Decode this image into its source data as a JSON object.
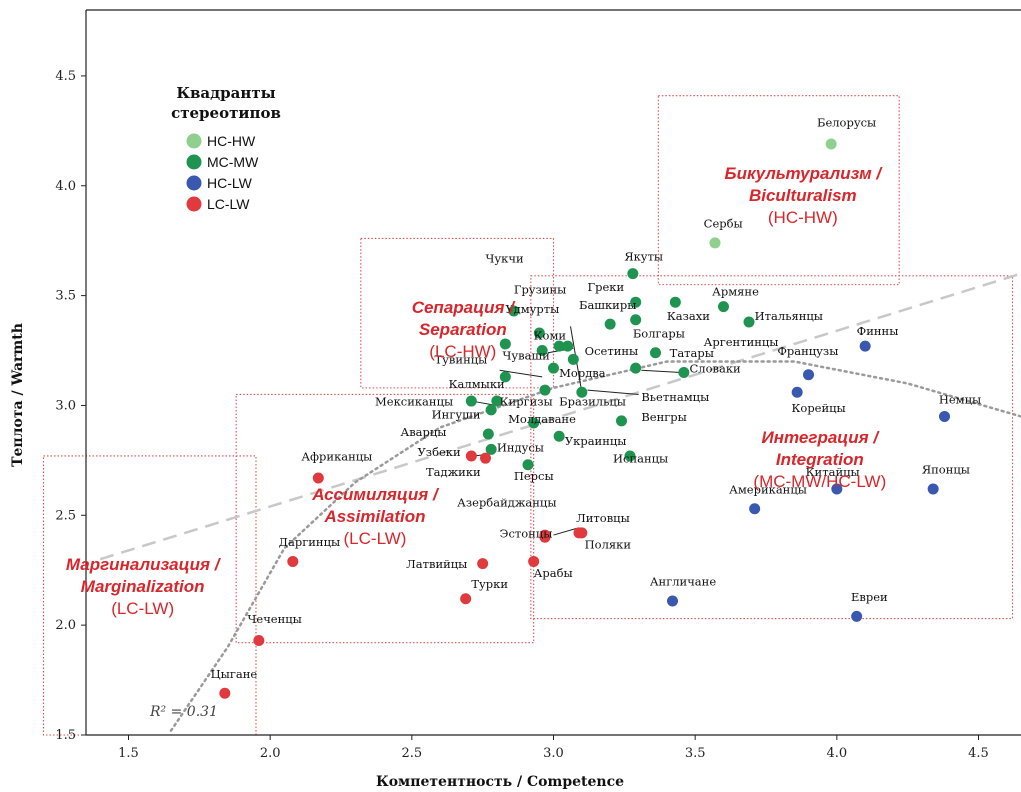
{
  "chart_data": {
    "type": "scatter",
    "xlabel": "Компетентность / Competence",
    "ylabel": "Теплота / Warmth",
    "xlim": [
      1.35,
      4.65
    ],
    "ylim": [
      1.5,
      4.8
    ],
    "x_ticks": [
      "1.5",
      "2.0",
      "2.5",
      "3.0",
      "3.5",
      "4.0",
      "4.5"
    ],
    "y_ticks": [
      "1.5",
      "2.0",
      "2.5",
      "3.0",
      "3.5",
      "4.0",
      "4.5"
    ],
    "legend": {
      "title_line1": "Квадранты",
      "title_line2": "стереотипов",
      "position": "top-left",
      "entries": [
        {
          "key": "HC-HW",
          "label": "HC-HW",
          "color": "#8fd08f"
        },
        {
          "key": "MC-MW",
          "label": "MC-MW",
          "color": "#1e9450"
        },
        {
          "key": "HC-LW",
          "label": "HC-LW",
          "color": "#3a58b0"
        },
        {
          "key": "LC-LW",
          "label": "LC-LW",
          "color": "#e0393e"
        }
      ]
    },
    "fit_line": {
      "style": "dashed",
      "r2_label": "R² = 0.31",
      "from": [
        1.4,
        2.3
      ],
      "to": [
        4.65,
        3.6
      ]
    },
    "curve_line": {
      "style": "dotted",
      "points": [
        [
          1.65,
          1.52
        ],
        [
          1.85,
          1.9
        ],
        [
          2.05,
          2.35
        ],
        [
          2.3,
          2.65
        ],
        [
          2.6,
          2.9
        ],
        [
          3.0,
          3.08
        ],
        [
          3.4,
          3.2
        ],
        [
          3.85,
          3.2
        ],
        [
          4.25,
          3.1
        ],
        [
          4.65,
          2.95
        ]
      ]
    },
    "regions": [
      {
        "name": "marginalization",
        "x": [
          1.2,
          1.95
        ],
        "y": [
          1.5,
          2.77
        ],
        "line1": "Маргинализация /",
        "line2": "Marginalization",
        "line3": "(LC-LW)",
        "lx": 1.55,
        "ly": 2.25
      },
      {
        "name": "assimilation",
        "x": [
          1.88,
          2.93
        ],
        "y": [
          1.92,
          3.05
        ],
        "line1": "Ассимиляция /",
        "line2": "Assimilation",
        "line3": "(LC-LW)",
        "lx": 2.37,
        "ly": 2.57
      },
      {
        "name": "separation",
        "x": [
          2.32,
          3.0
        ],
        "y": [
          3.08,
          3.76
        ],
        "line1": "Сепарация /",
        "line2": "Separation",
        "line3": "(LC-HW)",
        "lx": 2.68,
        "ly": 3.42
      },
      {
        "name": "integration",
        "x": [
          2.92,
          4.62
        ],
        "y": [
          2.03,
          3.59
        ],
        "line1": "Интеграция /",
        "line2": "Integration",
        "line3": "(MC-MW/HC-LW)",
        "lx": 3.94,
        "ly": 2.83
      },
      {
        "name": "biculturalism",
        "x": [
          3.37,
          4.22
        ],
        "y": [
          3.55,
          4.41
        ],
        "line1": "Бикультурализм /",
        "line2": "Biculturalism",
        "line3": "(HC-HW)",
        "lx": 3.88,
        "ly": 4.03
      }
    ],
    "points": [
      {
        "label": "Белорусы",
        "x": 3.98,
        "y": 4.19,
        "q": "HC-HW",
        "lx": 3.93,
        "ly": 4.27
      },
      {
        "label": "Сербы",
        "x": 3.57,
        "y": 3.74,
        "q": "HC-HW",
        "lx": 3.53,
        "ly": 3.81
      },
      {
        "label": "Якуты",
        "x": 3.28,
        "y": 3.6,
        "q": "MC-MW",
        "lx": 3.25,
        "ly": 3.66
      },
      {
        "label": "Чукчи",
        "x": 2.86,
        "y": 3.43,
        "q": "MC-MW",
        "lx": 2.76,
        "ly": 3.65
      },
      {
        "label": "Грузины",
        "x": 2.95,
        "y": 3.33,
        "q": "MC-MW",
        "lx": 2.86,
        "ly": 3.51
      },
      {
        "label": "Удмурты",
        "x": 3.05,
        "y": 3.27,
        "q": "MC-MW",
        "lx": 2.83,
        "ly": 3.42
      },
      {
        "label": "Греки",
        "x": 3.29,
        "y": 3.47,
        "q": "MC-MW",
        "lx": 3.12,
        "ly": 3.52
      },
      {
        "label": "Башкиры",
        "x": 3.2,
        "y": 3.37,
        "q": "MC-MW",
        "lx": 3.09,
        "ly": 3.44
      },
      {
        "label": "Армяне",
        "x": 3.6,
        "y": 3.45,
        "q": "MC-MW",
        "lx": 3.56,
        "ly": 3.5
      },
      {
        "label": "Казахи",
        "x": 3.43,
        "y": 3.47,
        "q": "MC-MW",
        "lx": 3.4,
        "ly": 3.39
      },
      {
        "label": "Итальянцы",
        "x": 3.69,
        "y": 3.38,
        "q": "MC-MW",
        "lx": 3.71,
        "ly": 3.39
      },
      {
        "label": "Коми",
        "x": 3.02,
        "y": 3.27,
        "q": "MC-MW",
        "lx": 2.93,
        "ly": 3.3
      },
      {
        "label": "Болгары",
        "x": 3.29,
        "y": 3.39,
        "q": "MC-MW",
        "lx": 3.28,
        "ly": 3.31
      },
      {
        "label": "Аргентинцы",
        "x": 3.36,
        "y": 3.24,
        "q": "MC-MW",
        "lx": 3.53,
        "ly": 3.27
      },
      {
        "label": "Тувинцы",
        "x": 2.83,
        "y": 3.28,
        "q": "MC-MW",
        "lx": 2.58,
        "ly": 3.19
      },
      {
        "label": "Чуваши",
        "x": 2.96,
        "y": 3.25,
        "q": "MC-MW",
        "lx": 2.82,
        "ly": 3.21
      },
      {
        "label": "Осетины",
        "x": 3.07,
        "y": 3.21,
        "q": "MC-MW",
        "lx": 3.11,
        "ly": 3.23
      },
      {
        "label": "Татары",
        "x": 3.29,
        "y": 3.17,
        "q": "MC-MW",
        "lx": 3.41,
        "ly": 3.22
      },
      {
        "label": "Калмыки",
        "x": 2.83,
        "y": 3.13,
        "q": "MC-MW",
        "lx": 2.63,
        "ly": 3.08
      },
      {
        "label": "Мордва",
        "x": 3.0,
        "y": 3.17,
        "q": "MC-MW",
        "lx": 3.02,
        "ly": 3.13
      },
      {
        "label": "Словаки",
        "x": 3.46,
        "y": 3.15,
        "q": "MC-MW",
        "lx": 3.48,
        "ly": 3.15
      },
      {
        "label": "Мексиканцы",
        "x": 2.71,
        "y": 3.02,
        "q": "MC-MW",
        "lx": 2.37,
        "ly": 3.0
      },
      {
        "label": "Киргизы",
        "x": 2.8,
        "y": 3.02,
        "q": "MC-MW",
        "lx": 2.81,
        "ly": 3.0
      },
      {
        "label": "Бразильцы",
        "x": 2.97,
        "y": 3.07,
        "q": "MC-MW",
        "lx": 3.02,
        "ly": 3.0
      },
      {
        "label": "Вьетнамцы",
        "x": 3.1,
        "y": 3.06,
        "q": "MC-MW",
        "lx": 3.31,
        "ly": 3.02
      },
      {
        "label": "Ингуши",
        "x": 2.78,
        "y": 2.98,
        "q": "MC-MW",
        "lx": 2.57,
        "ly": 2.94
      },
      {
        "label": "Молдаване",
        "x": 2.93,
        "y": 2.92,
        "q": "MC-MW",
        "lx": 2.84,
        "ly": 2.92
      },
      {
        "label": "Венгры",
        "x": 3.24,
        "y": 2.93,
        "q": "MC-MW",
        "lx": 3.31,
        "ly": 2.93
      },
      {
        "label": "Аварцы",
        "x": 2.77,
        "y": 2.87,
        "q": "MC-MW",
        "lx": 2.46,
        "ly": 2.86
      },
      {
        "label": "Украинцы",
        "x": 3.02,
        "y": 2.86,
        "q": "MC-MW",
        "lx": 3.04,
        "ly": 2.82
      },
      {
        "label": "Индусы",
        "x": 2.78,
        "y": 2.8,
        "q": "MC-MW",
        "lx": 2.8,
        "ly": 2.79
      },
      {
        "label": "Испанцы",
        "x": 3.27,
        "y": 2.77,
        "q": "MC-MW",
        "lx": 3.21,
        "ly": 2.74
      },
      {
        "label": "Персы",
        "x": 2.91,
        "y": 2.73,
        "q": "MC-MW",
        "lx": 2.86,
        "ly": 2.66
      },
      {
        "label": "Финны",
        "x": 4.1,
        "y": 3.27,
        "q": "HC-LW",
        "lx": 4.07,
        "ly": 3.32
      },
      {
        "label": "Французы",
        "x": 3.9,
        "y": 3.14,
        "q": "HC-LW",
        "lx": 3.79,
        "ly": 3.23
      },
      {
        "label": "Корейцы",
        "x": 3.86,
        "y": 3.06,
        "q": "HC-LW",
        "lx": 3.84,
        "ly": 2.97
      },
      {
        "label": "Немцы",
        "x": 4.38,
        "y": 2.95,
        "q": "HC-LW",
        "lx": 4.36,
        "ly": 3.01
      },
      {
        "label": "Китайцы",
        "x": 4.0,
        "y": 2.62,
        "q": "HC-LW",
        "lx": 3.89,
        "ly": 2.68
      },
      {
        "label": "Японцы",
        "x": 4.34,
        "y": 2.62,
        "q": "HC-LW",
        "lx": 4.3,
        "ly": 2.69
      },
      {
        "label": "Американцы",
        "x": 3.71,
        "y": 2.53,
        "q": "HC-LW",
        "lx": 3.62,
        "ly": 2.6
      },
      {
        "label": "Англичане",
        "x": 3.42,
        "y": 2.11,
        "q": "HC-LW",
        "lx": 3.34,
        "ly": 2.18
      },
      {
        "label": "Евреи",
        "x": 4.07,
        "y": 2.04,
        "q": "HC-LW",
        "lx": 4.05,
        "ly": 2.11
      },
      {
        "label": "Африканцы",
        "x": 2.17,
        "y": 2.67,
        "q": "LC-LW",
        "lx": 2.11,
        "ly": 2.75
      },
      {
        "label": "Узбеки",
        "x": 2.71,
        "y": 2.77,
        "q": "LC-LW",
        "lx": 2.52,
        "ly": 2.77
      },
      {
        "label": "Таджики",
        "x": 2.76,
        "y": 2.76,
        "q": "LC-LW",
        "lx": 2.55,
        "ly": 2.68
      },
      {
        "label": "Азербайджанцы",
        "x": 2.97,
        "y": 2.4,
        "q": "LC-LW",
        "lx": 2.66,
        "ly": 2.54
      },
      {
        "label": "Литовцы",
        "x": 3.09,
        "y": 2.42,
        "q": "LC-LW",
        "lx": 3.08,
        "ly": 2.47
      },
      {
        "label": "Эстонцы",
        "x": 2.97,
        "y": 2.41,
        "q": "LC-LW",
        "lx": 2.81,
        "ly": 2.4
      },
      {
        "label": "Поляки",
        "x": 3.1,
        "y": 2.42,
        "q": "LC-LW",
        "lx": 3.11,
        "ly": 2.35
      },
      {
        "label": "Даргинцы",
        "x": 2.08,
        "y": 2.29,
        "q": "LC-LW",
        "lx": 2.03,
        "ly": 2.36
      },
      {
        "label": "Латвийцы",
        "x": 2.75,
        "y": 2.28,
        "q": "LC-LW",
        "lx": 2.48,
        "ly": 2.26
      },
      {
        "label": "Турки",
        "x": 2.69,
        "y": 2.12,
        "q": "LC-LW",
        "lx": 2.71,
        "ly": 2.17
      },
      {
        "label": "Арабы",
        "x": 2.93,
        "y": 2.29,
        "q": "LC-LW",
        "lx": 2.93,
        "ly": 2.22
      },
      {
        "label": "Чеченцы",
        "x": 1.96,
        "y": 1.93,
        "q": "LC-LW",
        "lx": 1.92,
        "ly": 2.01
      },
      {
        "label": "Цыгане",
        "x": 1.84,
        "y": 1.69,
        "q": "LC-LW",
        "lx": 1.79,
        "ly": 1.76
      }
    ],
    "leaders": [
      {
        "from": [
          2.81,
          3.16
        ],
        "to": [
          2.96,
          3.13
        ]
      },
      {
        "from": [
          2.98,
          3.24
        ],
        "to": [
          3.07,
          3.26
        ]
      },
      {
        "from": [
          3.12,
          3.07
        ],
        "to": [
          3.3,
          3.05
        ]
      },
      {
        "from": [
          2.8,
          3.0
        ],
        "to": [
          2.71,
          3.02
        ]
      },
      {
        "from": [
          3.31,
          3.16
        ],
        "to": [
          3.45,
          3.15
        ]
      },
      {
        "from": [
          3.1,
          3.06
        ],
        "to": [
          3.06,
          3.36
        ]
      },
      {
        "from": [
          3.0,
          2.41
        ],
        "to": [
          3.08,
          2.44
        ]
      },
      {
        "from": [
          2.72,
          2.77
        ],
        "to": [
          2.78,
          2.78
        ]
      }
    ]
  }
}
